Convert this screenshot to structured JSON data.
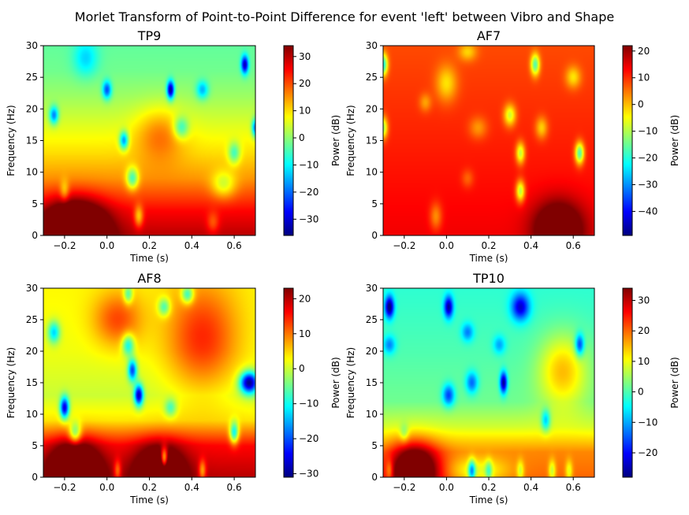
{
  "figure": {
    "suptitle": "Morlet Transform of Point-to-Point Difference for event 'left' between Vibro and Shape",
    "colormap": "jet"
  },
  "chart_data": [
    {
      "type": "heatmap",
      "title": "TP9",
      "xlabel": "Time (s)",
      "ylabel": "Frequency (Hz)",
      "xlim": [
        -0.3,
        0.7
      ],
      "ylim": [
        0,
        30
      ],
      "xticks": [
        -0.2,
        0.0,
        0.2,
        0.4,
        0.6
      ],
      "xtick_labels": [
        "−0.2",
        "0.0",
        "0.2",
        "0.4",
        "0.6"
      ],
      "yticks": [
        0,
        5,
        10,
        15,
        20,
        25,
        30
      ],
      "yticklabels": [
        "0",
        "5",
        "10",
        "15",
        "20",
        "25",
        "30"
      ],
      "colorbar": {
        "label": "Power (dB)",
        "vmin": -36,
        "vmax": 34,
        "ticks": [
          -30,
          -20,
          -10,
          0,
          10,
          20,
          30
        ],
        "tick_labels": [
          "−30",
          "−20",
          "−10",
          "0",
          "10",
          "20",
          "30"
        ]
      },
      "base_rows": [
        [
          0,
          30
        ],
        [
          4,
          25
        ],
        [
          9,
          15
        ],
        [
          13,
          10
        ],
        [
          18,
          5
        ],
        [
          22,
          1
        ],
        [
          26,
          -2
        ],
        [
          30,
          -3
        ]
      ],
      "blobs": [
        {
          "x": -0.15,
          "y": 1,
          "v": 36,
          "sx": 0.1,
          "sy": 3
        },
        {
          "x": 0.3,
          "y": 23,
          "v": -35,
          "sx": 0.012,
          "sy": 1
        },
        {
          "x": 0.65,
          "y": 27,
          "v": -30,
          "sx": 0.012,
          "sy": 1
        },
        {
          "x": 0.7,
          "y": 17,
          "v": -25,
          "sx": 0.012,
          "sy": 1
        },
        {
          "x": -0.25,
          "y": 19,
          "v": -22,
          "sx": 0.015,
          "sy": 1
        },
        {
          "x": -0.0,
          "y": 23,
          "v": -22,
          "sx": 0.015,
          "sy": 1
        },
        {
          "x": 0.08,
          "y": 15,
          "v": -25,
          "sx": 0.015,
          "sy": 1
        },
        {
          "x": 0.12,
          "y": 9,
          "v": -20,
          "sx": 0.02,
          "sy": 1.2
        },
        {
          "x": 0.35,
          "y": 17,
          "v": -15,
          "sx": 0.025,
          "sy": 1.2
        },
        {
          "x": 0.45,
          "y": 23,
          "v": -15,
          "sx": 0.02,
          "sy": 1
        },
        {
          "x": 0.6,
          "y": 13,
          "v": -15,
          "sx": 0.02,
          "sy": 1.2
        },
        {
          "x": -0.1,
          "y": 28,
          "v": -10,
          "sx": 0.04,
          "sy": 2
        },
        {
          "x": 0.55,
          "y": 8,
          "v": -12,
          "sx": 0.04,
          "sy": 1.5
        },
        {
          "x": 0.25,
          "y": 16,
          "v": 10,
          "sx": 0.08,
          "sy": 3
        },
        {
          "x": -0.2,
          "y": 7,
          "v": -10,
          "sx": 0.015,
          "sy": 1.2
        },
        {
          "x": 0.15,
          "y": 3,
          "v": -15,
          "sx": 0.015,
          "sy": 1.2
        },
        {
          "x": 0.5,
          "y": 2,
          "v": -8,
          "sx": 0.02,
          "sy": 1.2
        }
      ]
    },
    {
      "type": "heatmap",
      "title": "AF7",
      "xlabel": "Time (s)",
      "ylabel": "Frequency (Hz)",
      "xlim": [
        -0.3,
        0.7
      ],
      "ylim": [
        0,
        30
      ],
      "xticks": [
        -0.2,
        0.0,
        0.2,
        0.4,
        0.6
      ],
      "xtick_labels": [
        "−0.2",
        "0.0",
        "0.2",
        "0.4",
        "0.6"
      ],
      "yticks": [
        0,
        5,
        10,
        15,
        20,
        25,
        30
      ],
      "yticklabels": [
        "0",
        "5",
        "10",
        "15",
        "20",
        "25",
        "30"
      ],
      "colorbar": {
        "label": "Power (dB)",
        "vmin": -49,
        "vmax": 22,
        "ticks": [
          -40,
          -30,
          -20,
          -10,
          0,
          10,
          20
        ],
        "tick_labels": [
          "−40",
          "−30",
          "−20",
          "−10",
          "0",
          "10",
          "20"
        ]
      },
      "base_rows": [
        [
          0,
          14
        ],
        [
          10,
          12
        ],
        [
          20,
          10
        ],
        [
          30,
          8
        ]
      ],
      "blobs": [
        {
          "x": 0.53,
          "y": 1,
          "v": 22,
          "sx": 0.08,
          "sy": 3
        },
        {
          "x": -0.3,
          "y": 27,
          "v": -30,
          "sx": 0.015,
          "sy": 1.2
        },
        {
          "x": -0.3,
          "y": 17,
          "v": -22,
          "sx": 0.015,
          "sy": 1.2
        },
        {
          "x": 0.42,
          "y": 27,
          "v": -25,
          "sx": 0.015,
          "sy": 1.2
        },
        {
          "x": 0.63,
          "y": 13,
          "v": -28,
          "sx": 0.015,
          "sy": 1.2
        },
        {
          "x": 0.35,
          "y": 13,
          "v": -20,
          "sx": 0.015,
          "sy": 1.2
        },
        {
          "x": 0.35,
          "y": 7,
          "v": -22,
          "sx": 0.015,
          "sy": 1.2
        },
        {
          "x": 0.3,
          "y": 19,
          "v": -18,
          "sx": 0.02,
          "sy": 1.2
        },
        {
          "x": 0.0,
          "y": 24,
          "v": -12,
          "sx": 0.035,
          "sy": 2
        },
        {
          "x": 0.45,
          "y": 17,
          "v": -12,
          "sx": 0.02,
          "sy": 1.2
        },
        {
          "x": 0.6,
          "y": 25,
          "v": -12,
          "sx": 0.025,
          "sy": 1.2
        },
        {
          "x": 0.1,
          "y": 29,
          "v": -10,
          "sx": 0.03,
          "sy": 1
        },
        {
          "x": -0.1,
          "y": 21,
          "v": -8,
          "sx": 0.02,
          "sy": 1
        },
        {
          "x": 0.15,
          "y": 17,
          "v": -8,
          "sx": 0.03,
          "sy": 1.2
        },
        {
          "x": -0.05,
          "y": 3,
          "v": -10,
          "sx": 0.02,
          "sy": 1.5
        },
        {
          "x": 0.1,
          "y": 9,
          "v": -6,
          "sx": 0.02,
          "sy": 1
        }
      ]
    },
    {
      "type": "heatmap",
      "title": "AF8",
      "xlabel": "Time (s)",
      "ylabel": "Frequency (Hz)",
      "xlim": [
        -0.3,
        0.7
      ],
      "ylim": [
        0,
        30
      ],
      "xticks": [
        -0.2,
        0.0,
        0.2,
        0.4,
        0.6
      ],
      "xtick_labels": [
        "−0.2",
        "0.0",
        "0.2",
        "0.4",
        "0.6"
      ],
      "yticks": [
        0,
        5,
        10,
        15,
        20,
        25,
        30
      ],
      "yticklabels": [
        "0",
        "5",
        "10",
        "15",
        "20",
        "25",
        "30"
      ],
      "colorbar": {
        "label": "Power (dB)",
        "vmin": -31,
        "vmax": 23,
        "ticks": [
          -30,
          -20,
          -10,
          0,
          10,
          20
        ],
        "tick_labels": [
          "−30",
          "−20",
          "−10",
          "0",
          "10",
          "20"
        ]
      },
      "base_rows": [
        [
          0,
          20
        ],
        [
          5,
          16
        ],
        [
          9,
          4
        ],
        [
          13,
          0
        ],
        [
          20,
          2
        ],
        [
          30,
          3
        ]
      ],
      "blobs": [
        {
          "x": -0.15,
          "y": 1,
          "v": 24,
          "sx": 0.08,
          "sy": 3
        },
        {
          "x": 0.25,
          "y": 1,
          "v": 18,
          "sx": 0.08,
          "sy": 3
        },
        {
          "x": 0.45,
          "y": 22,
          "v": 12,
          "sx": 0.12,
          "sy": 6
        },
        {
          "x": 0.05,
          "y": 25,
          "v": 10,
          "sx": 0.08,
          "sy": 3
        },
        {
          "x": 0.67,
          "y": 15,
          "v": -32,
          "sx": 0.03,
          "sy": 1.2
        },
        {
          "x": -0.2,
          "y": 11,
          "v": -28,
          "sx": 0.015,
          "sy": 1.2
        },
        {
          "x": 0.15,
          "y": 13,
          "v": -28,
          "sx": 0.015,
          "sy": 1.2
        },
        {
          "x": 0.12,
          "y": 17,
          "v": -22,
          "sx": 0.015,
          "sy": 1.2
        },
        {
          "x": 0.1,
          "y": 21,
          "v": -15,
          "sx": 0.02,
          "sy": 1.2
        },
        {
          "x": -0.25,
          "y": 23,
          "v": -15,
          "sx": 0.02,
          "sy": 1.2
        },
        {
          "x": 0.6,
          "y": 7,
          "v": -20,
          "sx": 0.015,
          "sy": 1.2
        },
        {
          "x": -0.15,
          "y": 7,
          "v": -15,
          "sx": 0.02,
          "sy": 1.2
        },
        {
          "x": 0.27,
          "y": 3,
          "v": -22,
          "sx": 0.012,
          "sy": 1.2
        },
        {
          "x": 0.38,
          "y": 29,
          "v": -15,
          "sx": 0.02,
          "sy": 1
        },
        {
          "x": 0.27,
          "y": 27,
          "v": -12,
          "sx": 0.02,
          "sy": 1
        },
        {
          "x": 0.1,
          "y": 29,
          "v": -12,
          "sx": 0.015,
          "sy": 1
        },
        {
          "x": 0.3,
          "y": 11,
          "v": -10,
          "sx": 0.02,
          "sy": 1
        },
        {
          "x": 0.45,
          "y": 1,
          "v": -12,
          "sx": 0.012,
          "sy": 1.2
        },
        {
          "x": 0.05,
          "y": 1,
          "v": -10,
          "sx": 0.012,
          "sy": 1.2
        }
      ]
    },
    {
      "type": "heatmap",
      "title": "TP10",
      "xlabel": "Time (s)",
      "ylabel": "Frequency (Hz)",
      "xlim": [
        -0.3,
        0.7
      ],
      "ylim": [
        0,
        30
      ],
      "xticks": [
        -0.2,
        0.0,
        0.2,
        0.4,
        0.6
      ],
      "xtick_labels": [
        "−0.2",
        "0.0",
        "0.2",
        "0.4",
        "0.6"
      ],
      "yticks": [
        0,
        5,
        10,
        15,
        20,
        25,
        30
      ],
      "yticklabels": [
        "0",
        "5",
        "10",
        "15",
        "20",
        "25",
        "30"
      ],
      "colorbar": {
        "label": "Power (dB)",
        "vmin": -28,
        "vmax": 34,
        "ticks": [
          -20,
          -10,
          0,
          10,
          20,
          30
        ],
        "tick_labels": [
          "−20",
          "−10",
          "0",
          "10",
          "20",
          "30"
        ]
      },
      "base_rows": [
        [
          0,
          20
        ],
        [
          4,
          18
        ],
        [
          8,
          8
        ],
        [
          12,
          2
        ],
        [
          20,
          0
        ],
        [
          30,
          -2
        ]
      ],
      "blobs": [
        {
          "x": -0.15,
          "y": 1,
          "v": 30,
          "sx": 0.08,
          "sy": 3
        },
        {
          "x": 0.55,
          "y": 17,
          "v": 14,
          "sx": 0.08,
          "sy": 4
        },
        {
          "x": 0.15,
          "y": 1,
          "v": -10,
          "sx": 0.1,
          "sy": 1.5
        },
        {
          "x": -0.27,
          "y": 27,
          "v": -28,
          "sx": 0.015,
          "sy": 1.2
        },
        {
          "x": 0.01,
          "y": 27,
          "v": -25,
          "sx": 0.015,
          "sy": 1.2
        },
        {
          "x": 0.27,
          "y": 15,
          "v": -28,
          "sx": 0.012,
          "sy": 1.2
        },
        {
          "x": 0.35,
          "y": 27,
          "v": -22,
          "sx": 0.03,
          "sy": 1.5
        },
        {
          "x": 0.63,
          "y": 21,
          "v": -20,
          "sx": 0.015,
          "sy": 1.2
        },
        {
          "x": 0.12,
          "y": 1,
          "v": -22,
          "sx": 0.012,
          "sy": 1.2
        },
        {
          "x": 0.01,
          "y": 13,
          "v": -18,
          "sx": 0.02,
          "sy": 1.2
        },
        {
          "x": 0.12,
          "y": 15,
          "v": -15,
          "sx": 0.02,
          "sy": 1.2
        },
        {
          "x": 0.47,
          "y": 9,
          "v": -15,
          "sx": 0.015,
          "sy": 1.2
        },
        {
          "x": 0.1,
          "y": 23,
          "v": -12,
          "sx": 0.02,
          "sy": 1
        },
        {
          "x": 0.25,
          "y": 21,
          "v": -10,
          "sx": 0.02,
          "sy": 1
        },
        {
          "x": -0.27,
          "y": 21,
          "v": -12,
          "sx": 0.02,
          "sy": 1
        },
        {
          "x": -0.27,
          "y": 1,
          "v": -10,
          "sx": 0.012,
          "sy": 1.2
        },
        {
          "x": 0.5,
          "y": 1,
          "v": -12,
          "sx": 0.012,
          "sy": 1.2
        },
        {
          "x": 0.58,
          "y": 1,
          "v": -10,
          "sx": 0.012,
          "sy": 1.2
        },
        {
          "x": 0.35,
          "y": 1,
          "v": -10,
          "sx": 0.012,
          "sy": 1.2
        },
        {
          "x": 0.2,
          "y": 1,
          "v": -12,
          "sx": 0.012,
          "sy": 1.2
        },
        {
          "x": -0.2,
          "y": 7,
          "v": -8,
          "sx": 0.015,
          "sy": 1
        }
      ]
    }
  ]
}
